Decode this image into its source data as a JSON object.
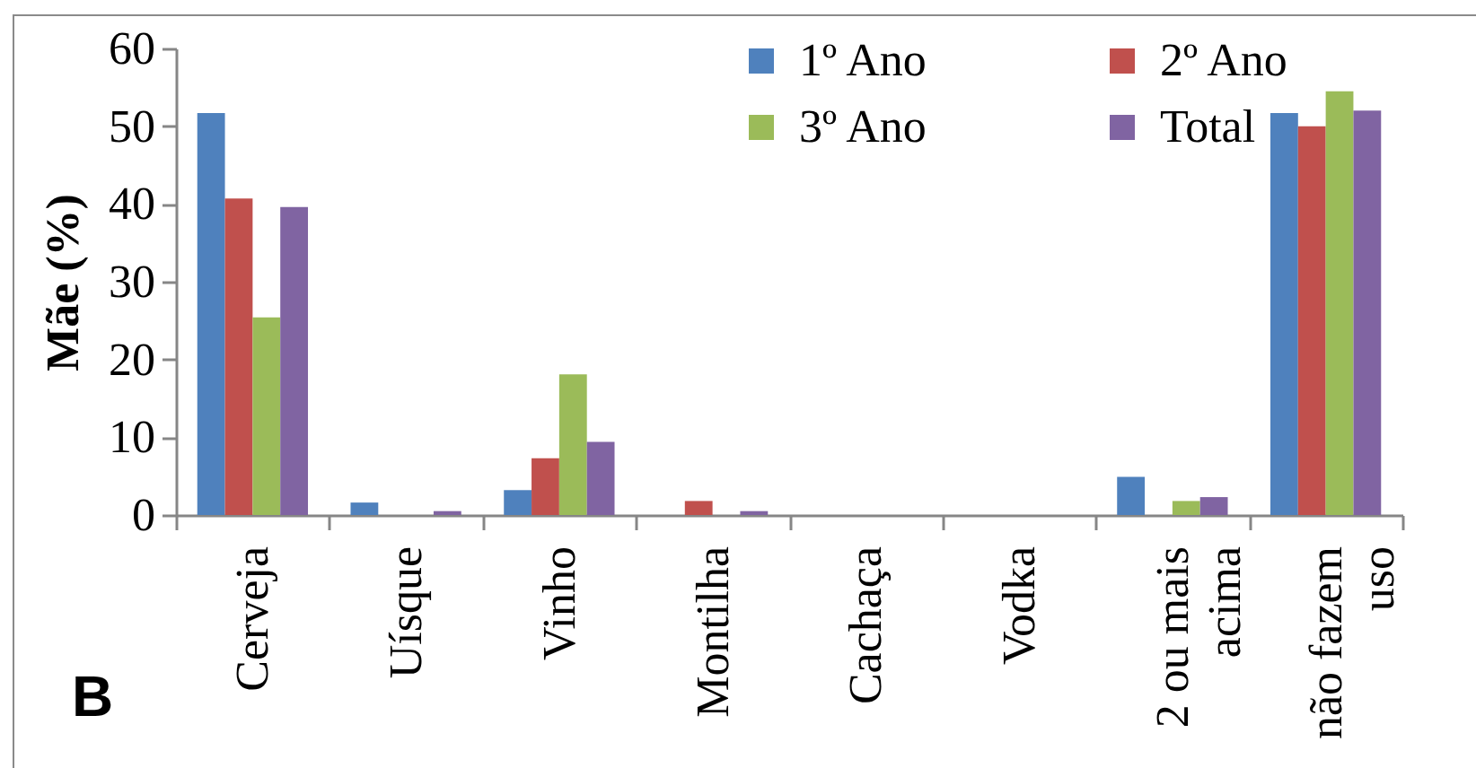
{
  "chart_data": {
    "type": "bar",
    "ylabel": "Mãe (%)",
    "categories": [
      "Cerveja",
      "Uísque",
      "Vinho",
      "Montilha",
      "Cachaça",
      "Vodka",
      "2 ou mais acima",
      "não fazem uso"
    ],
    "series": [
      {
        "name": "1º Ano",
        "color": "#4f81bd",
        "values": [
          51.7,
          1.6,
          3.2,
          0,
          0,
          0,
          4.9,
          51.7
        ]
      },
      {
        "name": "2º Ano",
        "color": "#c0504d",
        "values": [
          40.7,
          0,
          7.3,
          1.8,
          0,
          0,
          0,
          50.0
        ]
      },
      {
        "name": "3º Ano",
        "color": "#9bbb59",
        "values": [
          25.4,
          0,
          18.1,
          0,
          0,
          0,
          1.8,
          54.5
        ]
      },
      {
        "name": "Total",
        "color": "#8064a2",
        "values": [
          39.6,
          0.5,
          9.4,
          0.5,
          0,
          0,
          2.3,
          52.0
        ]
      }
    ],
    "ylim": [
      0,
      60
    ],
    "yticks": [
      0,
      10,
      20,
      30,
      40,
      50,
      60
    ],
    "grid": false,
    "legend": "top right",
    "annotations": [
      "B"
    ]
  }
}
